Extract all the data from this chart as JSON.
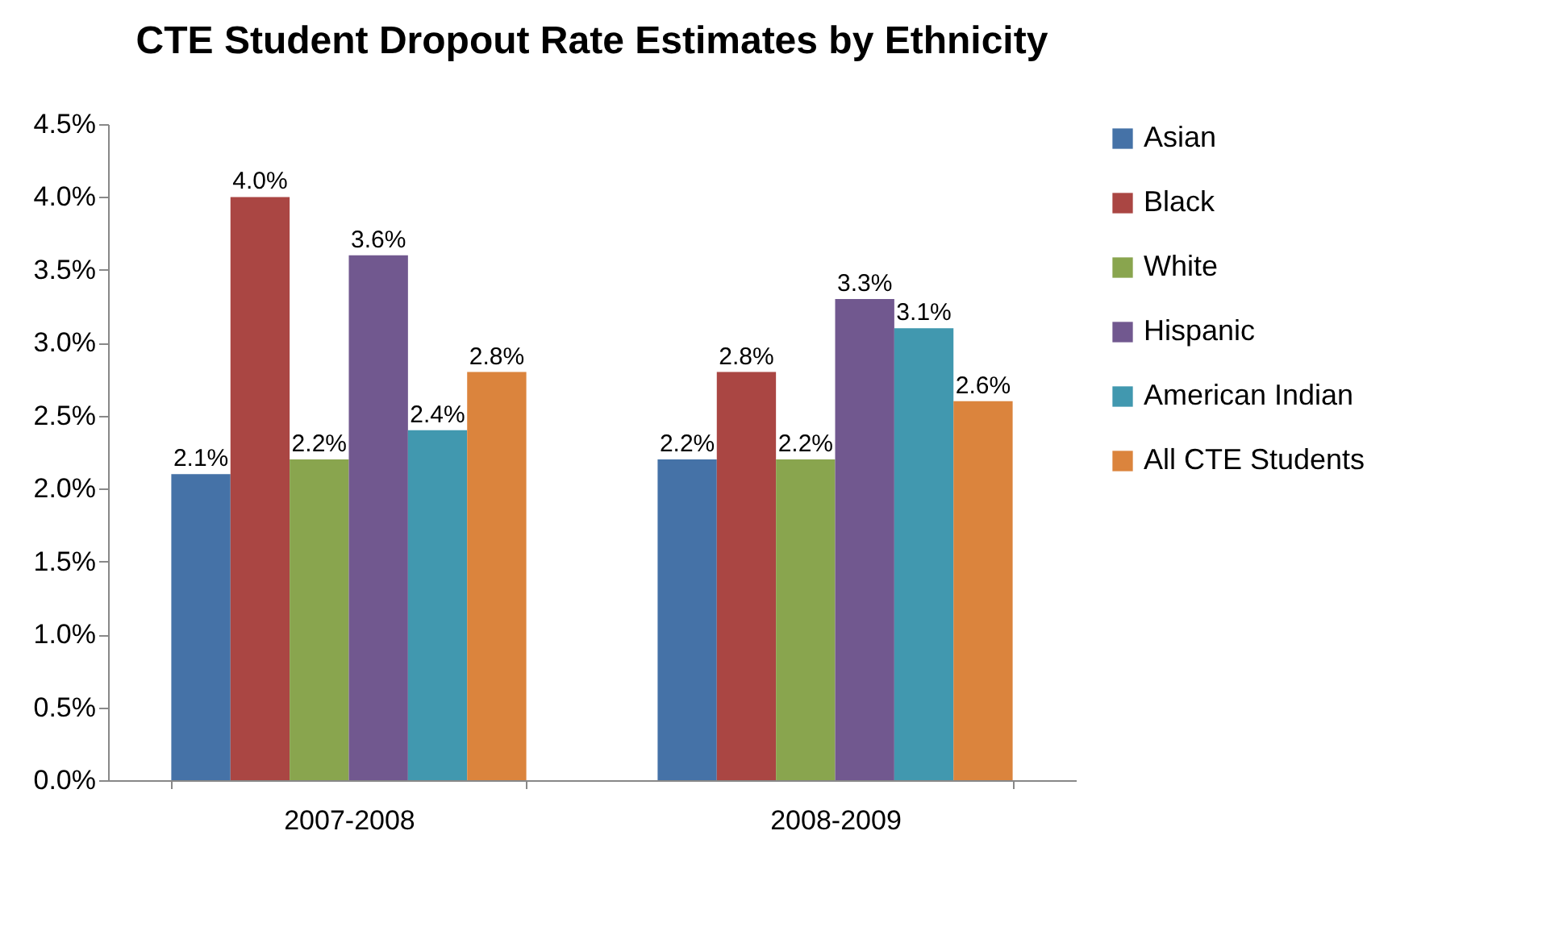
{
  "chart_data": {
    "type": "bar",
    "title": "CTE Student Dropout Rate Estimates by Ethnicity",
    "categories": [
      "2007-2008",
      "2008-2009"
    ],
    "series": [
      {
        "name": "Asian",
        "color": "#4572a7",
        "values": [
          2.1,
          2.2
        ],
        "value_labels": [
          "2.1%",
          "2.2%"
        ]
      },
      {
        "name": "Black",
        "color": "#aa4643",
        "values": [
          4.0,
          2.8
        ],
        "value_labels": [
          "4.0%",
          "2.8%"
        ]
      },
      {
        "name": "White",
        "color": "#89a54e",
        "values": [
          2.2,
          2.2
        ],
        "value_labels": [
          "2.2%",
          "2.2%"
        ]
      },
      {
        "name": "Hispanic",
        "color": "#71588f",
        "values": [
          3.6,
          3.3
        ],
        "value_labels": [
          "3.6%",
          "3.3%"
        ]
      },
      {
        "name": "American Indian",
        "color": "#4198af",
        "values": [
          2.4,
          3.1
        ],
        "value_labels": [
          "2.4%",
          "3.1%"
        ]
      },
      {
        "name": "All CTE Students",
        "color": "#db843d",
        "values": [
          2.8,
          2.6
        ],
        "value_labels": [
          "2.8%",
          "2.6%"
        ]
      }
    ],
    "ylim": [
      0,
      4.5
    ],
    "yticks": [
      {
        "value": 0,
        "label": "0.0%"
      },
      {
        "value": 0.5,
        "label": "0.5%"
      },
      {
        "value": 1,
        "label": "1.0%"
      },
      {
        "value": 1.5,
        "label": "1.5%"
      },
      {
        "value": 2,
        "label": "2.0%"
      },
      {
        "value": 2.5,
        "label": "2.5%"
      },
      {
        "value": 3,
        "label": "3.0%"
      },
      {
        "value": 3.5,
        "label": "3.5%"
      },
      {
        "value": 4,
        "label": "4.0%"
      },
      {
        "value": 4.5,
        "label": "4.5%"
      }
    ],
    "grid": false,
    "legend": "right"
  }
}
